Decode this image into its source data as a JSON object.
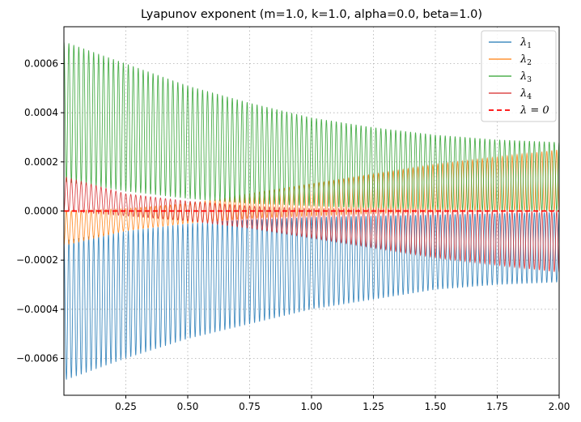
{
  "chart_data": {
    "type": "line",
    "title": "Lyapunov exponent (m=1.0, k=1.0, alpha=0.0, beta=1.0)",
    "xlabel": "",
    "ylabel": "",
    "xlim": [
      0.0,
      2.0
    ],
    "ylim": [
      -0.00075,
      0.00075
    ],
    "grid": true,
    "legend_position": "top-right",
    "x_ticks": [
      0.25,
      0.5,
      0.75,
      1.0,
      1.25,
      1.5,
      1.75,
      2.0
    ],
    "x_tick_labels": [
      "0.25",
      "0.50",
      "0.75",
      "1.00",
      "1.25",
      "1.50",
      "1.75",
      "2.00"
    ],
    "y_ticks": [
      -0.0006,
      -0.0004,
      -0.0002,
      0.0,
      0.0002,
      0.0004,
      0.0006
    ],
    "y_tick_labels": [
      "−0.0006",
      "−0.0004",
      "−0.0002",
      "0.0000",
      "0.0002",
      "0.0004",
      "0.0006"
    ],
    "oscillation_periods_across_range": 100,
    "series": [
      {
        "name": "λ1",
        "sub": "1",
        "color": "#1f77b4",
        "envelope": {
          "x": [
            0.0,
            0.25,
            0.5,
            0.75,
            1.0,
            1.25,
            1.5,
            1.75,
            2.0
          ],
          "upper": [
            -0.00012,
            -8e-05,
            -5e-05,
            -3.5e-05,
            -2.5e-05,
            -2e-05,
            -1.5e-05,
            -1e-05,
            -5e-06
          ],
          "lower": [
            -0.00069,
            -0.0006,
            -0.00052,
            -0.00046,
            -0.0004,
            -0.00036,
            -0.00032,
            -0.0003,
            -0.00029
          ]
        }
      },
      {
        "name": "λ2",
        "sub": "2",
        "color": "#ff7f0e",
        "envelope": {
          "x": [
            0.0,
            0.25,
            0.5,
            0.75,
            1.0,
            1.25,
            1.5,
            1.75,
            2.0
          ],
          "upper": [
            0.0,
            1e-05,
            3e-05,
            7e-05,
            0.00011,
            0.00015,
            0.00019,
            0.00022,
            0.00025
          ],
          "lower": [
            -0.00014,
            -8e-05,
            -5e-05,
            -3e-05,
            -2e-05,
            -1e-05,
            -5e-06,
            0.0,
            0.0
          ]
        }
      },
      {
        "name": "λ3",
        "sub": "3",
        "color": "#2ca02c",
        "envelope": {
          "x": [
            0.0,
            0.25,
            0.5,
            0.75,
            1.0,
            1.25,
            1.5,
            1.75,
            2.0
          ],
          "upper": [
            0.00069,
            0.0006,
            0.00051,
            0.00044,
            0.00038,
            0.00034,
            0.00031,
            0.00029,
            0.00028
          ],
          "lower": [
            0.00012,
            8e-05,
            5e-05,
            3e-05,
            2e-05,
            1e-05,
            5e-06,
            0.0,
            0.0
          ]
        }
      },
      {
        "name": "λ4",
        "sub": "4",
        "color": "#d62728",
        "envelope": {
          "x": [
            0.0,
            0.25,
            0.5,
            0.75,
            1.0,
            1.25,
            1.5,
            1.75,
            2.0
          ],
          "upper": [
            0.00014,
            7e-05,
            4e-05,
            2e-05,
            1e-05,
            1e-05,
            5e-06,
            0.0,
            0.0
          ],
          "lower": [
            0.0,
            -2e-05,
            -4e-05,
            -7e-05,
            -0.00011,
            -0.00015,
            -0.00019,
            -0.00022,
            -0.00025
          ]
        }
      }
    ],
    "reference_line": {
      "label": "λ = 0",
      "y": 0.0,
      "color": "#ff0000",
      "style": "dashed"
    }
  }
}
